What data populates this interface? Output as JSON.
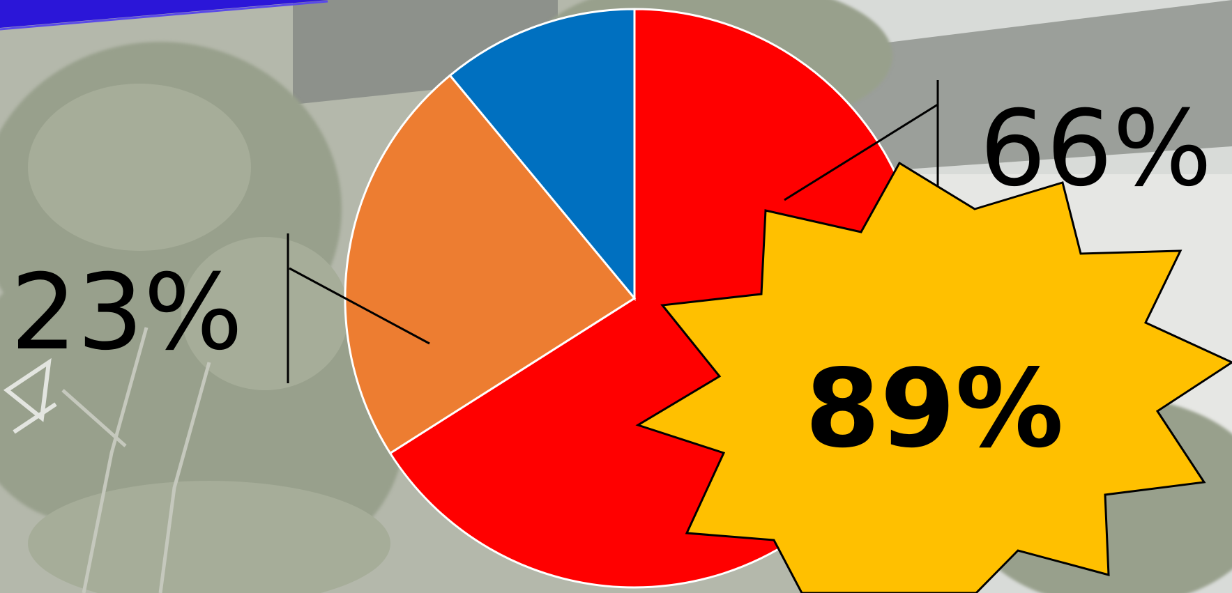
{
  "chart_data": {
    "type": "pie",
    "slices": [
      {
        "value": 66,
        "color": "#ff0000"
      },
      {
        "value": 23,
        "color": "#ed7d31"
      },
      {
        "value": 11,
        "color": "#0070c0"
      }
    ],
    "data_labels": [
      "66%",
      "23%"
    ]
  },
  "badge": {
    "text": "89%",
    "color": "#ffc000"
  },
  "colors": {
    "banner": "#2b16d8",
    "background": "#aeb3a6",
    "slice_border": "#ffffff"
  }
}
